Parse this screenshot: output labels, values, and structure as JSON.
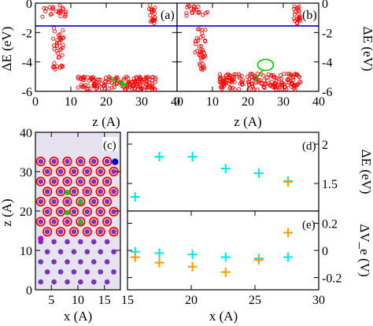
{
  "chart_data": [
    {
      "id": "a",
      "type": "scatter",
      "panel_label": "(a)",
      "ylabel": "ΔE (eV)",
      "xlabel": "z (A)",
      "xlim": [
        0,
        40
      ],
      "ylim": [
        -6,
        0
      ],
      "xticks": [
        "0",
        "10",
        "20",
        "30",
        "40"
      ],
      "yticks": [
        "0",
        "-2",
        "-4",
        "-6"
      ],
      "reference_line": {
        "y": -1.55,
        "color": "#0000cc"
      },
      "marker": "open-circle",
      "marker_color": "#ff0000",
      "clusters": [
        {
          "x_range": [
            2,
            9
          ],
          "y_range": [
            -0.1,
            -1.0
          ],
          "count": 24
        },
        {
          "x_range": [
            5,
            8
          ],
          "y_range": [
            -1.7,
            -4.6
          ],
          "count": 40
        },
        {
          "x_range": [
            12,
            34
          ],
          "y_range": [
            -5.0,
            -5.9
          ],
          "count": 160
        },
        {
          "x_range": [
            32,
            34
          ],
          "y_range": [
            -0.1,
            -1.4
          ],
          "count": 24
        }
      ],
      "annotation": {
        "type": "arrow",
        "color": "#00cc00",
        "from": [
          21,
          -5.1
        ],
        "to": [
          26,
          -5.6
        ]
      }
    },
    {
      "id": "b",
      "type": "scatter",
      "panel_label": "(b)",
      "ylabel": "ΔE (eV)",
      "xlabel": "z (A)",
      "xlim": [
        0,
        40
      ],
      "ylim": [
        -6,
        0
      ],
      "xticks": [
        "0",
        "10",
        "20",
        "30",
        "40"
      ],
      "yticks": [
        "0",
        "-2",
        "-4",
        "-6"
      ],
      "reference_line": {
        "y": -1.55,
        "color": "#0000cc"
      },
      "marker": "open-circle",
      "marker_color": "#ff0000",
      "clusters": [
        {
          "x_range": [
            2,
            9
          ],
          "y_range": [
            -0.1,
            -1.0
          ],
          "count": 20
        },
        {
          "x_range": [
            5,
            8
          ],
          "y_range": [
            -1.7,
            -4.6
          ],
          "count": 40
        },
        {
          "x_range": [
            12,
            35
          ],
          "y_range": [
            -4.8,
            -5.9
          ],
          "count": 180
        },
        {
          "x_range": [
            33,
            35
          ],
          "y_range": [
            -0.1,
            -1.4
          ],
          "count": 24
        }
      ],
      "annotation": {
        "type": "ellipse+arrow",
        "color": "#00cc00",
        "center": [
          25,
          -4.2
        ],
        "to": [
          22,
          -5.3
        ]
      }
    },
    {
      "id": "c",
      "type": "scatter",
      "panel_label": "(c)",
      "xlabel": "x (A)",
      "ylabel": "z (A)",
      "xlim": [
        2,
        18
      ],
      "ylim": [
        0,
        40
      ],
      "xticks": [
        "5",
        "10",
        "15"
      ],
      "yticks": [
        "0",
        "10",
        "20",
        "30",
        "40"
      ],
      "background": "#e6e2f0",
      "lattice": {
        "x_values": [
          3.0,
          5.5,
          8.0,
          10.5,
          13.0,
          15.5
        ],
        "row_z_start": 2,
        "row_z_step": 2.55,
        "rows": 13,
        "stagger": 1.25,
        "atom_color": "#7733bb",
        "ring_color": "#ff0000",
        "ring_rows_from": 5,
        "green_atoms": [
          [
            8.0,
            24.7
          ],
          [
            10.5,
            22.2
          ],
          [
            8.0,
            19.6
          ],
          [
            10.5,
            17.1
          ]
        ],
        "blue_atom": [
          17.0,
          32.5
        ],
        "magenta_atom": [
          3.0,
          13.0
        ]
      }
    },
    {
      "id": "d",
      "type": "scatter",
      "panel_label": "(d)",
      "ylabel": "ΔE (eV)",
      "xlim": [
        15,
        30
      ],
      "ylim": [
        1.15,
        2.15
      ],
      "xticks": [
        "15",
        "20",
        "25",
        "30"
      ],
      "yticks": [
        "1.5",
        "2"
      ],
      "series": [
        {
          "color": "#00e5ee",
          "x": [
            15.6,
            17.5,
            20.1,
            22.7,
            25.3,
            27.6
          ],
          "y": [
            1.33,
            1.84,
            1.84,
            1.69,
            1.63,
            1.53
          ]
        },
        {
          "color": "#ff9900",
          "x": [
            27.6
          ],
          "y": [
            1.52
          ]
        }
      ]
    },
    {
      "id": "e",
      "type": "scatter",
      "panel_label": "(e)",
      "ylabel": "ΔV_e (V)",
      "xlabel": "x (A)",
      "xlim": [
        15,
        30
      ],
      "ylim": [
        -0.29,
        0.29
      ],
      "xticks": [
        "15",
        "20",
        "25",
        "30"
      ],
      "yticks": [
        "0.2",
        "0",
        "-0.2"
      ],
      "series": [
        {
          "color": "#00e5ee",
          "x": [
            15.6,
            17.5,
            20.1,
            22.7,
            25.3,
            27.6
          ],
          "y": [
            -0.01,
            -0.02,
            -0.03,
            -0.05,
            -0.06,
            -0.05
          ]
        },
        {
          "color": "#ff9900",
          "x": [
            15.6,
            17.5,
            20.1,
            22.7,
            25.3,
            27.6
          ],
          "y": [
            -0.05,
            -0.09,
            -0.12,
            -0.16,
            -0.07,
            0.13
          ]
        }
      ]
    }
  ]
}
